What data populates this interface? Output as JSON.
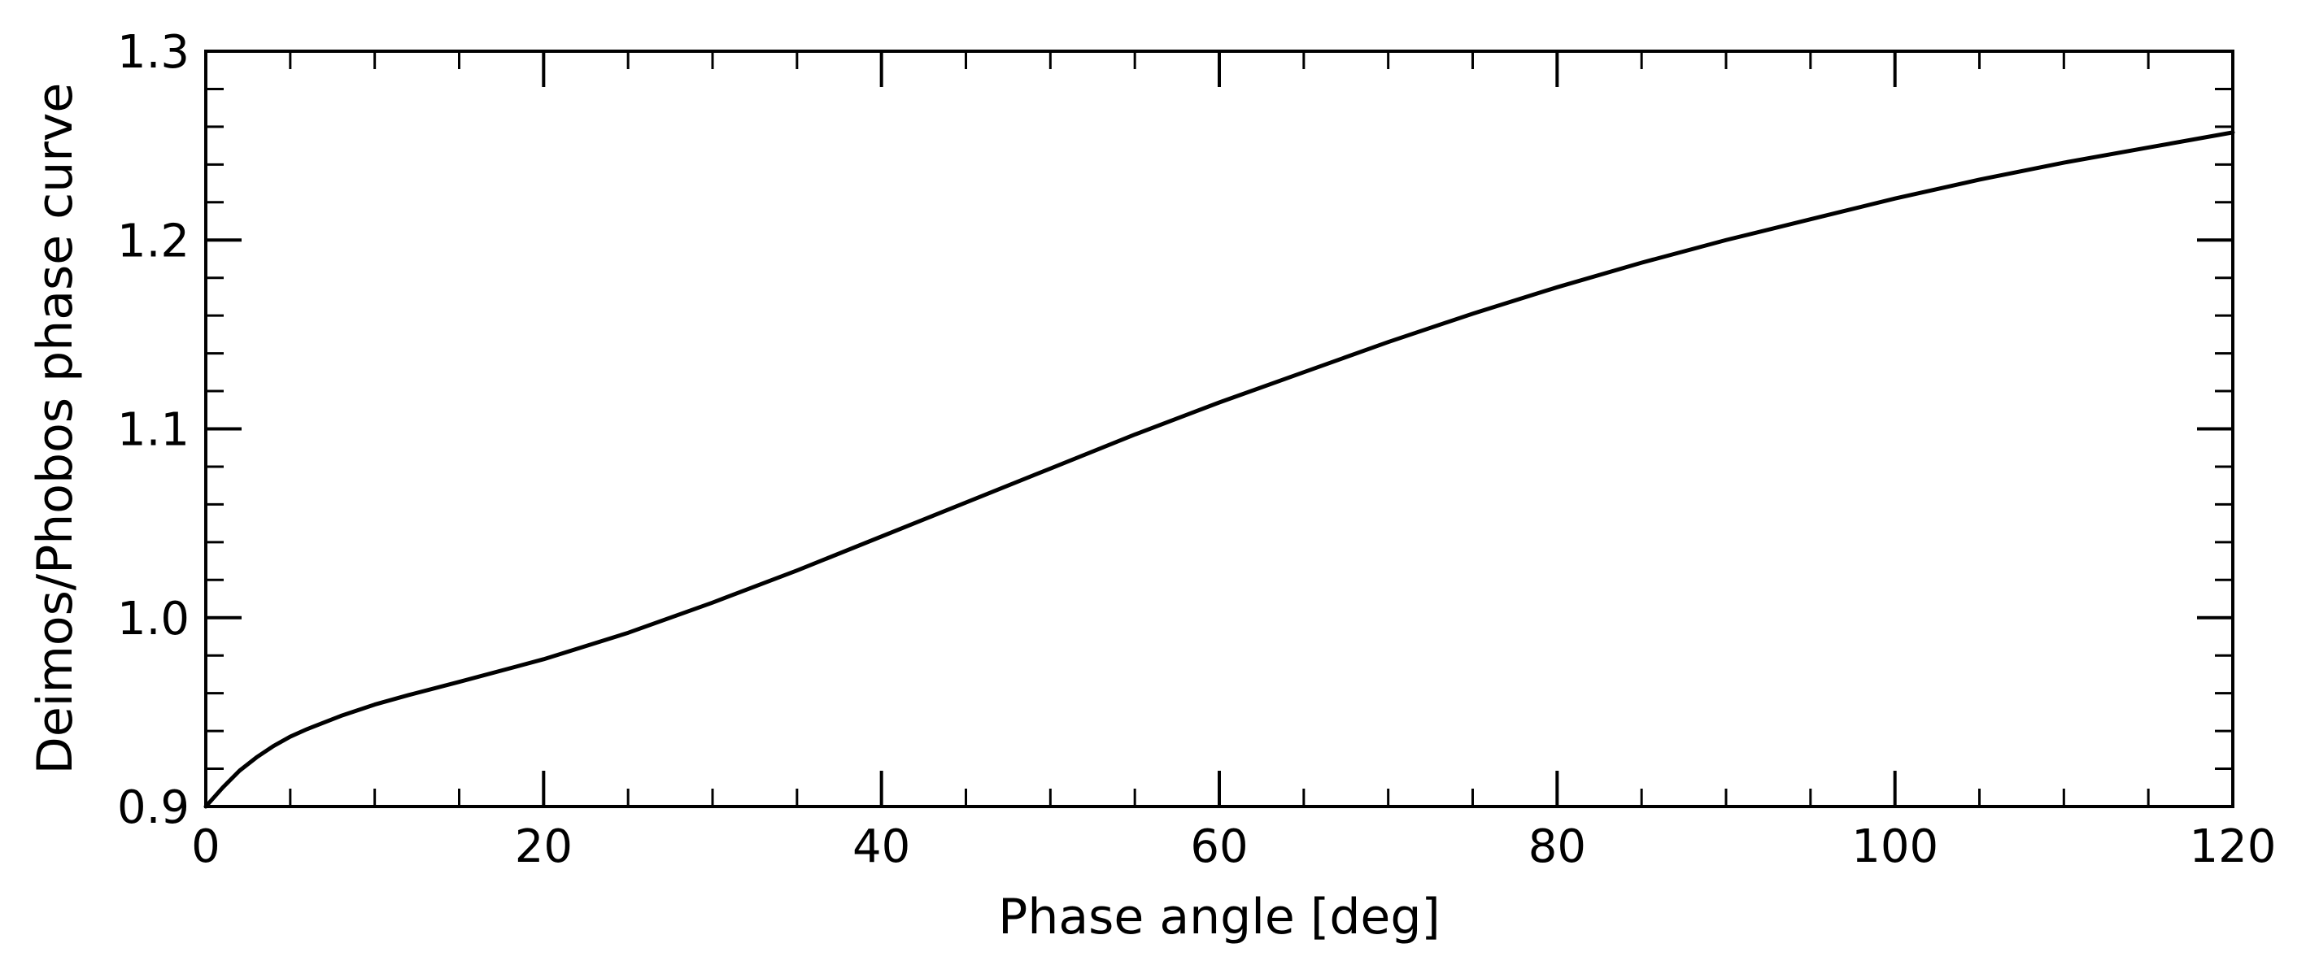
{
  "chart_data": {
    "type": "line",
    "title": "",
    "xlabel": "Phase angle [deg]",
    "ylabel": "Deimos/Phobos phase curve",
    "xlim": [
      0,
      120
    ],
    "ylim": [
      0.9,
      1.3
    ],
    "x_ticks": [
      0,
      20,
      40,
      60,
      80,
      100,
      120
    ],
    "x_tick_labels": [
      "0",
      "20",
      "40",
      "60",
      "80",
      "100",
      "120"
    ],
    "y_ticks": [
      0.9,
      1.0,
      1.1,
      1.2,
      1.3
    ],
    "y_tick_labels": [
      "0.9",
      "1.0",
      "1.1",
      "1.2",
      "1.3"
    ],
    "x_minor_step": 5,
    "y_minor_step": 0.02,
    "ticks_direction": "in",
    "ticks_on_all_sides": true,
    "grid": false,
    "legend": "none",
    "line_color": "#000000",
    "series": [
      {
        "x": [
          0,
          0.5,
          1,
          2,
          3,
          4,
          5,
          6,
          8,
          10,
          12,
          15,
          20,
          25,
          30,
          35,
          40,
          45,
          50,
          55,
          60,
          65,
          70,
          75,
          80,
          85,
          90,
          95,
          100,
          105,
          110,
          115,
          120
        ],
        "y": [
          0.9,
          0.905,
          0.91,
          0.919,
          0.926,
          0.932,
          0.937,
          0.941,
          0.948,
          0.954,
          0.959,
          0.966,
          0.978,
          0.992,
          1.008,
          1.025,
          1.043,
          1.061,
          1.079,
          1.097,
          1.114,
          1.13,
          1.146,
          1.161,
          1.175,
          1.188,
          1.2,
          1.211,
          1.222,
          1.232,
          1.241,
          1.249,
          1.257
        ]
      }
    ]
  }
}
